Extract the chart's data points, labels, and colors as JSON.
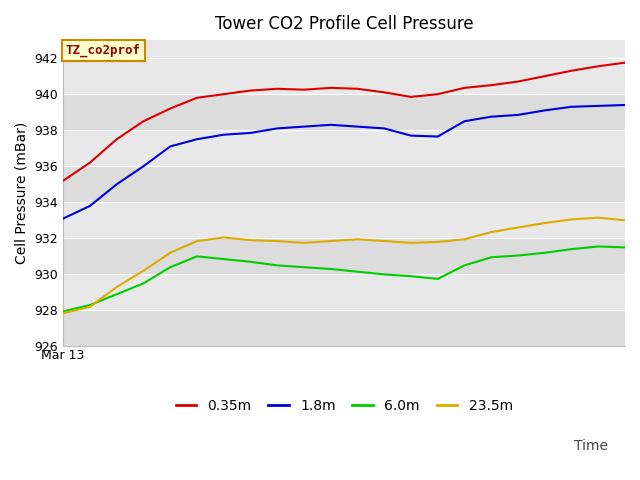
{
  "title": "Tower CO2 Profile Cell Pressure",
  "xlabel": "Time",
  "ylabel": "Cell Pressure (mBar)",
  "ylim": [
    926,
    943
  ],
  "yticks": [
    926,
    928,
    930,
    932,
    934,
    936,
    938,
    940,
    942
  ],
  "x_label_text": "Mar 13",
  "annotation_text": "TZ_co2prof",
  "annotation_bg": "#ffffcc",
  "annotation_border": "#cc8800",
  "annotation_text_color": "#990000",
  "band_colors": [
    "#dcdcdc",
    "#e8e8e8"
  ],
  "grid_color": "#ffffff",
  "series": {
    "0.35m": {
      "color": "#dd0000",
      "y": [
        935.2,
        936.2,
        937.5,
        938.5,
        939.2,
        939.8,
        940.0,
        940.2,
        940.3,
        940.25,
        940.35,
        940.3,
        940.1,
        939.85,
        940.0,
        940.35,
        940.5,
        940.7,
        941.0,
        941.3,
        941.55,
        941.75
      ]
    },
    "1.8m": {
      "color": "#0000dd",
      "y": [
        933.1,
        933.8,
        935.0,
        936.0,
        937.1,
        937.5,
        937.75,
        937.85,
        938.1,
        938.2,
        938.3,
        938.2,
        938.1,
        937.7,
        937.65,
        938.5,
        938.75,
        938.85,
        939.1,
        939.3,
        939.35,
        939.4
      ]
    },
    "6.0m": {
      "color": "#00cc00",
      "y": [
        927.95,
        928.3,
        928.9,
        929.5,
        930.4,
        931.0,
        930.85,
        930.7,
        930.5,
        930.4,
        930.3,
        930.15,
        930.0,
        929.9,
        929.75,
        930.5,
        930.95,
        931.05,
        931.2,
        931.4,
        931.55,
        931.5
      ]
    },
    "23.5m": {
      "color": "#ddaa00",
      "y": [
        927.85,
        928.2,
        929.3,
        930.2,
        931.2,
        931.85,
        932.05,
        931.9,
        931.85,
        931.75,
        931.85,
        931.95,
        931.85,
        931.75,
        931.8,
        931.95,
        932.35,
        932.6,
        932.85,
        933.05,
        933.15,
        933.0
      ]
    }
  }
}
